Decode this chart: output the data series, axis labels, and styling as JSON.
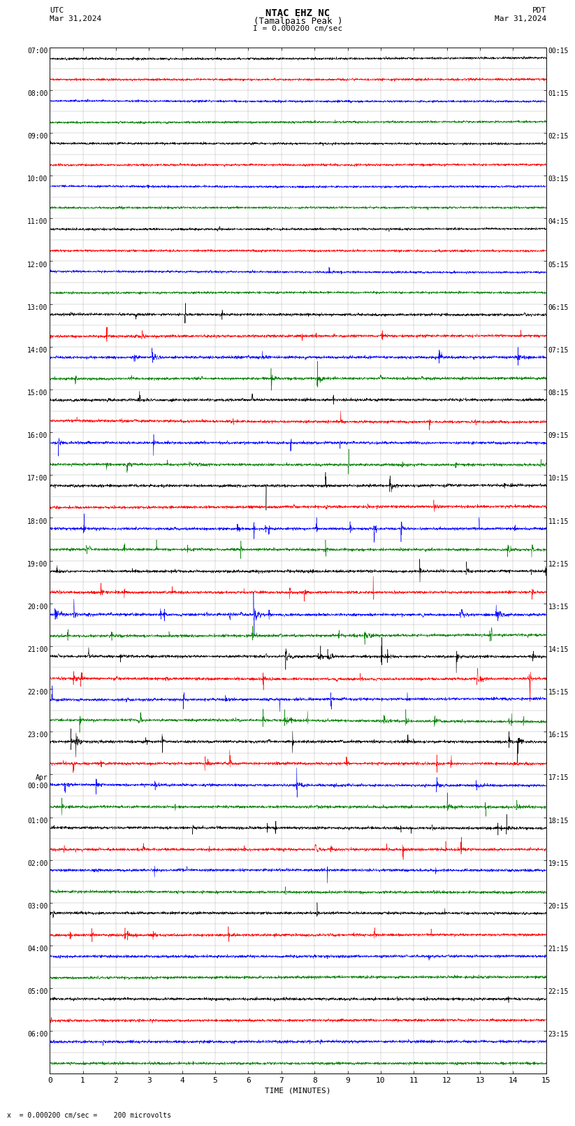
{
  "title_line1": "NTAC EHZ NC",
  "title_line2": "(Tamalpais Peak )",
  "title_line3": "I = 0.000200 cm/sec",
  "left_label_top": "UTC",
  "left_label_date": "Mar 31,2024",
  "right_label_top": "PDT",
  "right_label_date": "Mar 31,2024",
  "bottom_xlabel": "TIME (MINUTES)",
  "bottom_note": "x  = 0.000200 cm/sec =    200 microvolts",
  "xmin": 0,
  "xmax": 15,
  "xticks": [
    0,
    1,
    2,
    3,
    4,
    5,
    6,
    7,
    8,
    9,
    10,
    11,
    12,
    13,
    14,
    15
  ],
  "trace_colors_cycle": [
    "black",
    "red",
    "blue",
    "green"
  ],
  "background_color": "#ffffff",
  "num_rows": 48,
  "utc_labels": [
    "07:00",
    "",
    "08:00",
    "",
    "09:00",
    "",
    "10:00",
    "",
    "11:00",
    "",
    "12:00",
    "",
    "13:00",
    "",
    "14:00",
    "",
    "15:00",
    "",
    "16:00",
    "",
    "17:00",
    "",
    "18:00",
    "",
    "19:00",
    "",
    "20:00",
    "",
    "21:00",
    "",
    "22:00",
    "",
    "23:00",
    "",
    "Apr\n00:00",
    "",
    "01:00",
    "",
    "02:00",
    "",
    "03:00",
    "",
    "04:00",
    "",
    "05:00",
    "",
    "06:00",
    ""
  ],
  "pdt_labels": [
    "00:15",
    "",
    "01:15",
    "",
    "02:15",
    "",
    "03:15",
    "",
    "04:15",
    "",
    "05:15",
    "",
    "06:15",
    "",
    "07:15",
    "",
    "08:15",
    "",
    "09:15",
    "",
    "10:15",
    "",
    "11:15",
    "",
    "12:15",
    "",
    "13:15",
    "",
    "14:15",
    "",
    "15:15",
    "",
    "16:15",
    "",
    "17:15",
    "",
    "18:15",
    "",
    "19:15",
    "",
    "20:15",
    "",
    "21:15",
    "",
    "22:15",
    "",
    "23:15",
    ""
  ]
}
